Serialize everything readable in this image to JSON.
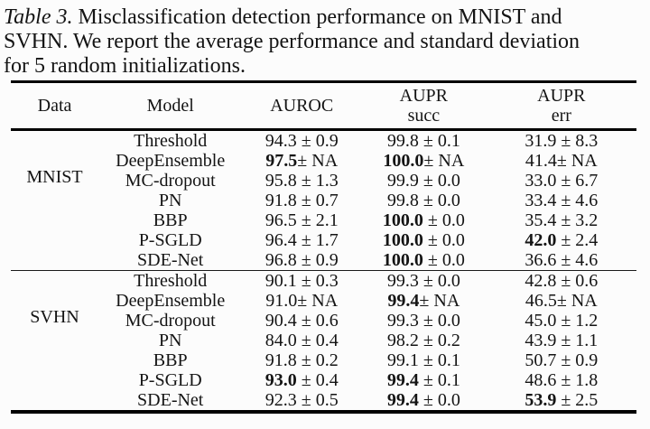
{
  "caption": {
    "label": "Table 3.",
    "line1_rest": " Misclassification detection performance on MNIST and",
    "line2": "SVHN. We report the average performance and standard deviation",
    "line3": "for 5 random initializations."
  },
  "table": {
    "headers": [
      {
        "name": "data",
        "lines": [
          "Data"
        ]
      },
      {
        "name": "model",
        "lines": [
          "Model"
        ]
      },
      {
        "name": "auroc",
        "lines": [
          "AUROC"
        ]
      },
      {
        "name": "aupr-succ",
        "lines": [
          "AUPR",
          "succ"
        ]
      },
      {
        "name": "aupr-err",
        "lines": [
          "AUPR",
          "err"
        ]
      }
    ],
    "sections": [
      {
        "dataset": "MNIST",
        "rows": [
          {
            "model": "Threshold",
            "auroc": {
              "mean": "94.3",
              "rest": " ± 0.9",
              "bold": false
            },
            "aupr_succ": {
              "mean": "99.8",
              "rest": " ± 0.1",
              "bold": false
            },
            "aupr_err": {
              "mean": "31.9",
              "rest": " ± 8.3",
              "bold": false
            }
          },
          {
            "model": "DeepEnsemble",
            "auroc": {
              "mean": "97.5",
              "rest": "± NA",
              "bold": true
            },
            "aupr_succ": {
              "mean": "100.0",
              "rest": "± NA",
              "bold": true
            },
            "aupr_err": {
              "mean": "41.4",
              "rest": "± NA",
              "bold": false
            }
          },
          {
            "model": "MC-dropout",
            "auroc": {
              "mean": "95.8",
              "rest": " ± 1.3",
              "bold": false
            },
            "aupr_succ": {
              "mean": "99.9",
              "rest": " ± 0.0",
              "bold": false
            },
            "aupr_err": {
              "mean": "33.0",
              "rest": " ± 6.7",
              "bold": false
            }
          },
          {
            "model": "PN",
            "auroc": {
              "mean": "91.8",
              "rest": " ± 0.7",
              "bold": false
            },
            "aupr_succ": {
              "mean": "99.8",
              "rest": " ± 0.0",
              "bold": false
            },
            "aupr_err": {
              "mean": "33.4",
              "rest": " ± 4.6",
              "bold": false
            }
          },
          {
            "model": "BBP",
            "auroc": {
              "mean": "96.5",
              "rest": " ± 2.1",
              "bold": false
            },
            "aupr_succ": {
              "mean": "100.0",
              "rest": " ± 0.0",
              "bold": true
            },
            "aupr_err": {
              "mean": "35.4",
              "rest": " ± 3.2",
              "bold": false
            }
          },
          {
            "model": "P-SGLD",
            "auroc": {
              "mean": "96.4",
              "rest": " ± 1.7",
              "bold": false
            },
            "aupr_succ": {
              "mean": "100.0",
              "rest": " ± 0.0",
              "bold": true
            },
            "aupr_err": {
              "mean": "42.0",
              "rest": " ± 2.4",
              "bold": true
            }
          },
          {
            "model": "SDE-Net",
            "auroc": {
              "mean": "96.8",
              "rest": " ± 0.9",
              "bold": false
            },
            "aupr_succ": {
              "mean": "100.0",
              "rest": " ± 0.0",
              "bold": true
            },
            "aupr_err": {
              "mean": "36.6",
              "rest": " ± 4.6",
              "bold": false
            }
          }
        ]
      },
      {
        "dataset": "SVHN",
        "rows": [
          {
            "model": "Threshold",
            "auroc": {
              "mean": "90.1",
              "rest": " ± 0.3",
              "bold": false
            },
            "aupr_succ": {
              "mean": "99.3",
              "rest": " ± 0.0",
              "bold": false
            },
            "aupr_err": {
              "mean": "42.8",
              "rest": " ± 0.6",
              "bold": false
            }
          },
          {
            "model": "DeepEnsemble",
            "auroc": {
              "mean": "91.0",
              "rest": "± NA",
              "bold": false
            },
            "aupr_succ": {
              "mean": "99.4",
              "rest": "± NA",
              "bold": true
            },
            "aupr_err": {
              "mean": "46.5",
              "rest": "± NA",
              "bold": false
            }
          },
          {
            "model": "MC-dropout",
            "auroc": {
              "mean": "90.4",
              "rest": " ± 0.6",
              "bold": false
            },
            "aupr_succ": {
              "mean": "99.3",
              "rest": " ± 0.0",
              "bold": false
            },
            "aupr_err": {
              "mean": "45.0",
              "rest": " ± 1.2",
              "bold": false
            }
          },
          {
            "model": "PN",
            "auroc": {
              "mean": "84.0",
              "rest": " ± 0.4",
              "bold": false
            },
            "aupr_succ": {
              "mean": "98.2",
              "rest": " ± 0.2",
              "bold": false
            },
            "aupr_err": {
              "mean": "43.9",
              "rest": " ± 1.1",
              "bold": false
            }
          },
          {
            "model": "BBP",
            "auroc": {
              "mean": "91.8",
              "rest": " ± 0.2",
              "bold": false
            },
            "aupr_succ": {
              "mean": "99.1",
              "rest": " ± 0.1",
              "bold": false
            },
            "aupr_err": {
              "mean": "50.7",
              "rest": " ± 0.9",
              "bold": false
            }
          },
          {
            "model": "P-SGLD",
            "auroc": {
              "mean": "93.0",
              "rest": " ± 0.4",
              "bold": true
            },
            "aupr_succ": {
              "mean": "99.4",
              "rest": " ± 0.1",
              "bold": true
            },
            "aupr_err": {
              "mean": "48.6",
              "rest": " ± 1.8",
              "bold": false
            }
          },
          {
            "model": "SDE-Net",
            "auroc": {
              "mean": "92.3",
              "rest": " ± 0.5",
              "bold": false
            },
            "aupr_succ": {
              "mean": "99.4",
              "rest": " ± 0.0",
              "bold": true
            },
            "aupr_err": {
              "mean": "53.9",
              "rest": " ± 2.5",
              "bold": true
            }
          }
        ]
      }
    ]
  },
  "colors": {
    "text": "#141414",
    "rule": "#000000",
    "background": "#fcfcfc"
  }
}
